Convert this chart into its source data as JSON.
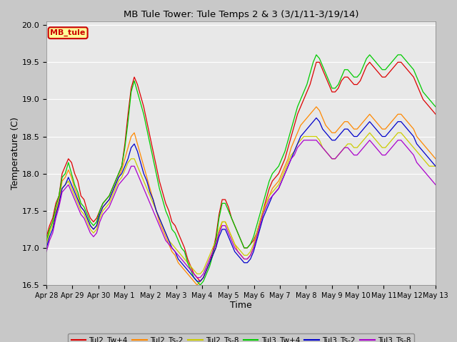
{
  "title": "MB Tule Tower: Tule Temps 2 & 3 (3/1/11-3/19/14)",
  "xlabel": "Time",
  "ylabel": "Temperature (C)",
  "ylim": [
    16.5,
    20.05
  ],
  "y_ticks": [
    16.5,
    17.0,
    17.5,
    18.0,
    18.5,
    19.0,
    19.5,
    20.0
  ],
  "x_tick_labels": [
    "Apr 28",
    "Apr 29",
    "Apr 30",
    "May 1",
    "May 2",
    "May 3",
    "May 4",
    "May 5",
    "May 6",
    "May 7",
    "May 8",
    "May 9",
    "May 10",
    "May 11",
    "May 12",
    "May 13"
  ],
  "legend_entries": [
    "Tul2_Tw+4",
    "Tul2_Ts-2",
    "Tul2_Ts-8",
    "Tul3_Tw+4",
    "Tul3_Ts-2",
    "Tul3_Ts-8"
  ],
  "line_colors": [
    "#dd0000",
    "#ff8800",
    "#cccc00",
    "#00cc00",
    "#0000cc",
    "#aa00cc"
  ],
  "fig_facecolor": "#c8c8c8",
  "plot_facecolor": "#e8e8e8",
  "annotation_box": {
    "text": "MB_tule",
    "color": "#cc0000",
    "bg": "#ffff99"
  },
  "series": {
    "Tul2_Tw4": [
      17.15,
      17.3,
      17.4,
      17.6,
      17.7,
      18.0,
      18.1,
      18.2,
      18.15,
      18.0,
      17.9,
      17.7,
      17.65,
      17.5,
      17.4,
      17.35,
      17.4,
      17.5,
      17.6,
      17.65,
      17.7,
      17.8,
      17.9,
      18.0,
      18.1,
      18.4,
      18.8,
      19.15,
      19.3,
      19.2,
      19.05,
      18.9,
      18.7,
      18.5,
      18.3,
      18.1,
      17.9,
      17.75,
      17.6,
      17.5,
      17.35,
      17.3,
      17.2,
      17.1,
      17.0,
      16.85,
      16.75,
      16.65,
      16.6,
      16.55,
      16.6,
      16.7,
      16.8,
      16.95,
      17.15,
      17.45,
      17.65,
      17.65,
      17.55,
      17.4,
      17.3,
      17.2,
      17.1,
      17.0,
      17.0,
      17.05,
      17.1,
      17.2,
      17.35,
      17.5,
      17.65,
      17.8,
      17.9,
      17.95,
      18.0,
      18.1,
      18.2,
      18.35,
      18.5,
      18.65,
      18.8,
      18.9,
      19.0,
      19.1,
      19.2,
      19.35,
      19.5,
      19.5,
      19.4,
      19.3,
      19.2,
      19.1,
      19.1,
      19.15,
      19.25,
      19.3,
      19.3,
      19.25,
      19.2,
      19.2,
      19.25,
      19.35,
      19.45,
      19.5,
      19.45,
      19.4,
      19.35,
      19.3,
      19.3,
      19.35,
      19.4,
      19.45,
      19.5,
      19.5,
      19.45,
      19.4,
      19.35,
      19.3,
      19.2,
      19.1,
      19.0,
      18.95,
      18.9,
      18.85,
      18.8
    ],
    "Tul2_Ts2": [
      17.1,
      17.25,
      17.35,
      17.5,
      17.65,
      17.9,
      17.95,
      18.05,
      17.95,
      17.8,
      17.7,
      17.55,
      17.5,
      17.4,
      17.3,
      17.25,
      17.3,
      17.45,
      17.55,
      17.6,
      17.65,
      17.75,
      17.85,
      17.95,
      18.05,
      18.2,
      18.35,
      18.5,
      18.55,
      18.4,
      18.25,
      18.1,
      17.95,
      17.8,
      17.65,
      17.5,
      17.35,
      17.25,
      17.15,
      17.05,
      16.95,
      16.9,
      16.8,
      16.75,
      16.7,
      16.65,
      16.6,
      16.55,
      16.5,
      16.55,
      16.6,
      16.7,
      16.8,
      16.9,
      17.0,
      17.2,
      17.35,
      17.35,
      17.25,
      17.15,
      17.05,
      16.95,
      16.9,
      16.85,
      16.85,
      16.9,
      17.0,
      17.15,
      17.3,
      17.45,
      17.6,
      17.7,
      17.8,
      17.85,
      17.9,
      18.0,
      18.1,
      18.2,
      18.35,
      18.45,
      18.55,
      18.65,
      18.7,
      18.75,
      18.8,
      18.85,
      18.9,
      18.85,
      18.75,
      18.65,
      18.6,
      18.55,
      18.55,
      18.6,
      18.65,
      18.7,
      18.7,
      18.65,
      18.6,
      18.6,
      18.65,
      18.7,
      18.75,
      18.8,
      18.75,
      18.7,
      18.65,
      18.6,
      18.6,
      18.65,
      18.7,
      18.75,
      18.8,
      18.8,
      18.75,
      18.7,
      18.65,
      18.6,
      18.5,
      18.45,
      18.4,
      18.35,
      18.3,
      18.25,
      18.2
    ],
    "Tul2_Ts8": [
      17.05,
      17.2,
      17.3,
      17.45,
      17.6,
      17.8,
      17.85,
      17.9,
      17.8,
      17.7,
      17.6,
      17.5,
      17.45,
      17.35,
      17.25,
      17.2,
      17.25,
      17.4,
      17.5,
      17.55,
      17.6,
      17.7,
      17.8,
      17.9,
      17.95,
      18.05,
      18.15,
      18.2,
      18.2,
      18.1,
      18.0,
      17.9,
      17.8,
      17.7,
      17.6,
      17.5,
      17.4,
      17.3,
      17.2,
      17.1,
      17.05,
      17.0,
      16.95,
      16.9,
      16.85,
      16.8,
      16.75,
      16.7,
      16.65,
      16.65,
      16.7,
      16.8,
      16.9,
      17.0,
      17.1,
      17.25,
      17.35,
      17.35,
      17.25,
      17.15,
      17.05,
      17.0,
      16.95,
      16.9,
      16.9,
      16.95,
      17.05,
      17.2,
      17.35,
      17.5,
      17.6,
      17.7,
      17.75,
      17.8,
      17.85,
      17.95,
      18.05,
      18.15,
      18.25,
      18.3,
      18.4,
      18.45,
      18.5,
      18.5,
      18.5,
      18.5,
      18.5,
      18.45,
      18.35,
      18.3,
      18.25,
      18.2,
      18.2,
      18.25,
      18.3,
      18.35,
      18.4,
      18.4,
      18.35,
      18.35,
      18.4,
      18.45,
      18.5,
      18.55,
      18.5,
      18.45,
      18.4,
      18.35,
      18.35,
      18.4,
      18.45,
      18.5,
      18.55,
      18.55,
      18.5,
      18.45,
      18.4,
      18.35,
      18.3,
      18.25,
      18.2,
      18.15,
      18.1,
      18.1,
      18.1
    ],
    "Tul3_Tw4": [
      17.1,
      17.25,
      17.35,
      17.55,
      17.7,
      17.95,
      18.0,
      18.15,
      18.0,
      17.85,
      17.75,
      17.6,
      17.55,
      17.45,
      17.35,
      17.3,
      17.35,
      17.5,
      17.6,
      17.65,
      17.7,
      17.8,
      17.9,
      18.0,
      18.1,
      18.35,
      18.7,
      19.1,
      19.25,
      19.1,
      18.95,
      18.8,
      18.6,
      18.4,
      18.2,
      18.0,
      17.8,
      17.65,
      17.5,
      17.4,
      17.25,
      17.2,
      17.1,
      17.0,
      16.95,
      16.8,
      16.7,
      16.6,
      16.55,
      16.5,
      16.55,
      16.65,
      16.75,
      16.9,
      17.1,
      17.4,
      17.6,
      17.6,
      17.5,
      17.4,
      17.3,
      17.2,
      17.1,
      17.0,
      17.0,
      17.05,
      17.15,
      17.3,
      17.45,
      17.6,
      17.75,
      17.9,
      18.0,
      18.05,
      18.1,
      18.2,
      18.3,
      18.45,
      18.6,
      18.75,
      18.9,
      19.0,
      19.1,
      19.2,
      19.35,
      19.5,
      19.6,
      19.55,
      19.45,
      19.35,
      19.25,
      19.15,
      19.15,
      19.2,
      19.3,
      19.4,
      19.4,
      19.35,
      19.3,
      19.3,
      19.35,
      19.45,
      19.55,
      19.6,
      19.55,
      19.5,
      19.45,
      19.4,
      19.4,
      19.45,
      19.5,
      19.55,
      19.6,
      19.6,
      19.55,
      19.5,
      19.45,
      19.4,
      19.3,
      19.2,
      19.1,
      19.05,
      19.0,
      18.95,
      18.9
    ],
    "Tul3_Ts2": [
      17.0,
      17.15,
      17.25,
      17.45,
      17.6,
      17.8,
      17.85,
      17.95,
      17.85,
      17.75,
      17.65,
      17.55,
      17.5,
      17.4,
      17.3,
      17.25,
      17.3,
      17.45,
      17.55,
      17.6,
      17.65,
      17.75,
      17.85,
      17.95,
      18.0,
      18.1,
      18.2,
      18.35,
      18.4,
      18.3,
      18.15,
      18.0,
      17.9,
      17.75,
      17.65,
      17.5,
      17.4,
      17.3,
      17.2,
      17.1,
      17.0,
      16.95,
      16.85,
      16.8,
      16.75,
      16.7,
      16.65,
      16.6,
      16.55,
      16.55,
      16.6,
      16.7,
      16.8,
      16.9,
      17.0,
      17.15,
      17.25,
      17.25,
      17.15,
      17.05,
      16.95,
      16.9,
      16.85,
      16.8,
      16.8,
      16.85,
      16.95,
      17.1,
      17.25,
      17.4,
      17.5,
      17.6,
      17.7,
      17.75,
      17.8,
      17.9,
      18.0,
      18.1,
      18.2,
      18.3,
      18.4,
      18.5,
      18.55,
      18.6,
      18.65,
      18.7,
      18.75,
      18.7,
      18.6,
      18.55,
      18.5,
      18.45,
      18.45,
      18.5,
      18.55,
      18.6,
      18.6,
      18.55,
      18.5,
      18.5,
      18.55,
      18.6,
      18.65,
      18.7,
      18.65,
      18.6,
      18.55,
      18.5,
      18.5,
      18.55,
      18.6,
      18.65,
      18.7,
      18.7,
      18.65,
      18.6,
      18.55,
      18.5,
      18.4,
      18.35,
      18.3,
      18.25,
      18.2,
      18.15,
      18.1
    ],
    "Tul3_Ts8": [
      16.95,
      17.1,
      17.2,
      17.4,
      17.55,
      17.75,
      17.8,
      17.85,
      17.75,
      17.65,
      17.55,
      17.45,
      17.4,
      17.3,
      17.2,
      17.15,
      17.2,
      17.35,
      17.45,
      17.5,
      17.55,
      17.65,
      17.75,
      17.85,
      17.9,
      17.95,
      18.0,
      18.1,
      18.1,
      18.0,
      17.9,
      17.8,
      17.7,
      17.6,
      17.5,
      17.4,
      17.3,
      17.2,
      17.1,
      17.05,
      17.0,
      16.95,
      16.9,
      16.85,
      16.8,
      16.75,
      16.7,
      16.65,
      16.6,
      16.6,
      16.65,
      16.75,
      16.85,
      16.95,
      17.05,
      17.2,
      17.3,
      17.3,
      17.2,
      17.1,
      17.0,
      16.95,
      16.9,
      16.85,
      16.85,
      16.9,
      17.0,
      17.15,
      17.3,
      17.45,
      17.55,
      17.65,
      17.7,
      17.75,
      17.8,
      17.9,
      18.0,
      18.1,
      18.2,
      18.25,
      18.35,
      18.4,
      18.45,
      18.45,
      18.45,
      18.45,
      18.45,
      18.4,
      18.35,
      18.3,
      18.25,
      18.2,
      18.2,
      18.25,
      18.3,
      18.35,
      18.35,
      18.3,
      18.25,
      18.25,
      18.3,
      18.35,
      18.4,
      18.45,
      18.4,
      18.35,
      18.3,
      18.25,
      18.25,
      18.3,
      18.35,
      18.4,
      18.45,
      18.45,
      18.4,
      18.35,
      18.3,
      18.25,
      18.15,
      18.1,
      18.05,
      18.0,
      17.95,
      17.9,
      17.85
    ]
  }
}
